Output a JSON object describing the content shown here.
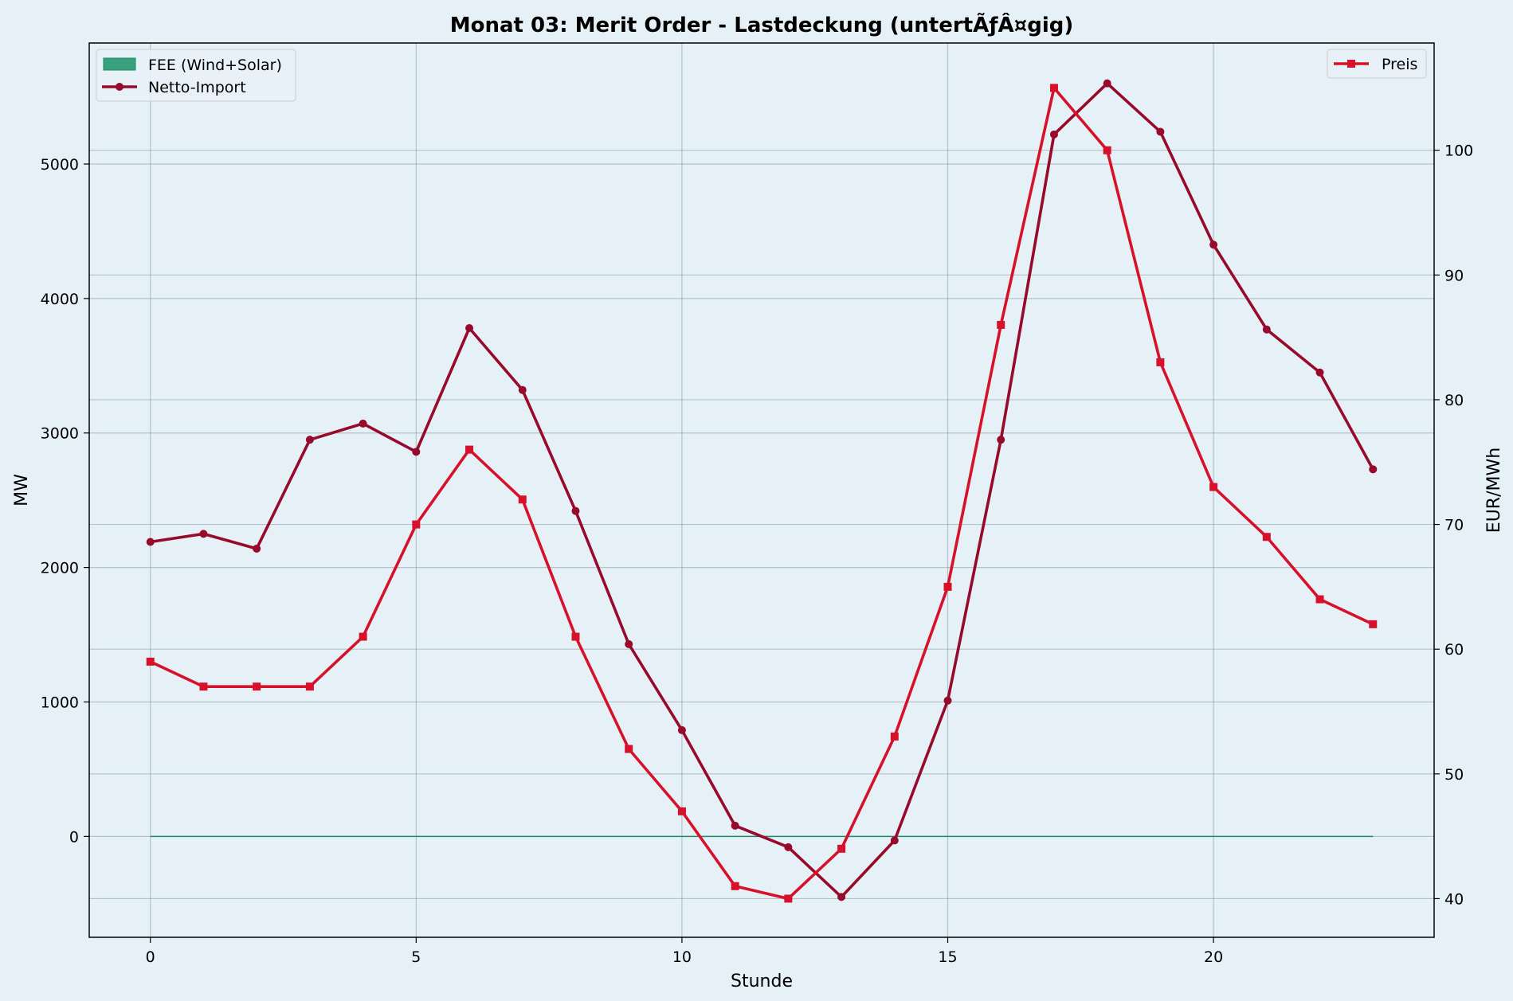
{
  "chart_data": {
    "type": "line",
    "title": "Monat 03: Merit Order - Lastdeckung (untertÃƒÂ¤gig)",
    "xlabel": "Stunde",
    "ylabel": "MW",
    "y2label": "EUR/MWh",
    "xlim": [
      -1.15,
      24.15
    ],
    "ylim": [
      -750,
      5900
    ],
    "y2lim": [
      36.9,
      108.6
    ],
    "xticks": [
      0,
      5,
      10,
      15,
      20
    ],
    "yticks": [
      0,
      1000,
      2000,
      3000,
      4000,
      5000
    ],
    "y2ticks": [
      40,
      50,
      60,
      70,
      80,
      90,
      100
    ],
    "grid": true,
    "x": [
      0,
      1,
      2,
      3,
      4,
      5,
      6,
      7,
      8,
      9,
      10,
      11,
      12,
      13,
      14,
      15,
      16,
      17,
      18,
      19,
      20,
      21,
      22,
      23
    ],
    "series": [
      {
        "name": "FEE (Wind+Solar)",
        "kind": "area",
        "axis": "left",
        "color": "#1a8a65",
        "values": [
          0,
          0,
          0,
          0,
          0,
          0,
          0,
          0,
          0,
          0,
          0,
          0,
          0,
          0,
          0,
          0,
          0,
          0,
          0,
          0,
          0,
          0,
          0,
          0
        ]
      },
      {
        "name": "Netto-Import",
        "kind": "line",
        "marker": "circle",
        "axis": "left",
        "color": "#970a2c",
        "values": [
          2190,
          2250,
          2140,
          2950,
          3070,
          2860,
          3780,
          3320,
          2420,
          1430,
          790,
          80,
          -80,
          -450,
          -30,
          1010,
          2950,
          5220,
          5600,
          5240,
          4400,
          3770,
          3450,
          2730
        ]
      },
      {
        "name": "Preis",
        "kind": "line",
        "marker": "square",
        "axis": "right",
        "color": "#d8112a",
        "values": [
          59,
          57,
          57,
          57,
          61,
          70,
          76,
          72,
          61,
          52,
          47,
          41,
          40,
          44,
          53,
          65,
          86,
          105,
          100,
          83,
          73,
          69,
          64,
          62
        ]
      }
    ],
    "legend_left": [
      "FEE (Wind+Solar)",
      "Netto-Import"
    ],
    "legend_right": [
      "Preis"
    ],
    "legend_left_position": "upper left",
    "legend_right_position": "upper right"
  }
}
